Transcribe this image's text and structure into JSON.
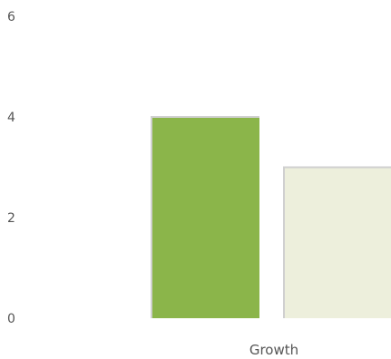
{
  "chart_data": {
    "type": "bar",
    "categories": [
      "Growth"
    ],
    "series": [
      {
        "values": [
          4
        ],
        "color": "#8bb54a"
      },
      {
        "values": [
          3
        ],
        "color": "#edefdc"
      }
    ],
    "yticks": [
      "0",
      "2",
      "4",
      "6"
    ],
    "ylim": [
      0,
      6
    ],
    "title": "",
    "xlabel": "",
    "ylabel": "",
    "grid": false,
    "legend": "none",
    "bar_shadow_color": "#d0d0d0"
  }
}
